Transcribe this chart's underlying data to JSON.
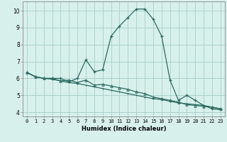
{
  "xlabel": "Humidex (Indice chaleur)",
  "bg_color": "#d8f0ec",
  "line_color": "#2a6b62",
  "grid_color": "#aad4cc",
  "series1_x": [
    0,
    1,
    2,
    3,
    4,
    5,
    6,
    7,
    8,
    9,
    10,
    11,
    12,
    13,
    14,
    15,
    16,
    17,
    18,
    19,
    20,
    21,
    22,
    23
  ],
  "series1_y": [
    6.35,
    6.1,
    6.0,
    6.0,
    6.0,
    5.8,
    6.0,
    7.1,
    6.4,
    6.5,
    8.5,
    9.1,
    9.6,
    10.1,
    10.1,
    9.5,
    8.5,
    5.9,
    4.7,
    5.0,
    4.7,
    4.4,
    4.2,
    4.15
  ],
  "series2_x": [
    0,
    1,
    2,
    3,
    4,
    5,
    6,
    7,
    8,
    9,
    10,
    11,
    12,
    13,
    14,
    15,
    16,
    17,
    18,
    19,
    20,
    21,
    22,
    23
  ],
  "series2_y": [
    6.35,
    6.1,
    6.0,
    5.95,
    5.85,
    5.75,
    5.7,
    5.6,
    5.5,
    5.4,
    5.3,
    5.2,
    5.1,
    5.0,
    4.9,
    4.8,
    4.75,
    4.65,
    4.55,
    4.5,
    4.45,
    4.4,
    4.3,
    4.2
  ],
  "series3_x": [
    0,
    1,
    2,
    3,
    4,
    5,
    6,
    7,
    8,
    9,
    10,
    11,
    12,
    13,
    14,
    15,
    16,
    17,
    18,
    19,
    20,
    21,
    22,
    23
  ],
  "series3_y": [
    6.35,
    6.1,
    6.0,
    6.0,
    5.85,
    5.9,
    5.75,
    5.9,
    5.6,
    5.65,
    5.55,
    5.45,
    5.35,
    5.2,
    5.1,
    4.9,
    4.8,
    4.7,
    4.6,
    4.45,
    4.4,
    4.35,
    4.3,
    4.2
  ],
  "ylim": [
    3.75,
    10.55
  ],
  "xlim": [
    -0.5,
    23.5
  ],
  "yticks": [
    4,
    5,
    6,
    7,
    8,
    9,
    10
  ],
  "xticks": [
    0,
    1,
    2,
    3,
    4,
    5,
    6,
    7,
    8,
    9,
    10,
    11,
    12,
    13,
    14,
    15,
    16,
    17,
    18,
    19,
    20,
    21,
    22,
    23
  ]
}
